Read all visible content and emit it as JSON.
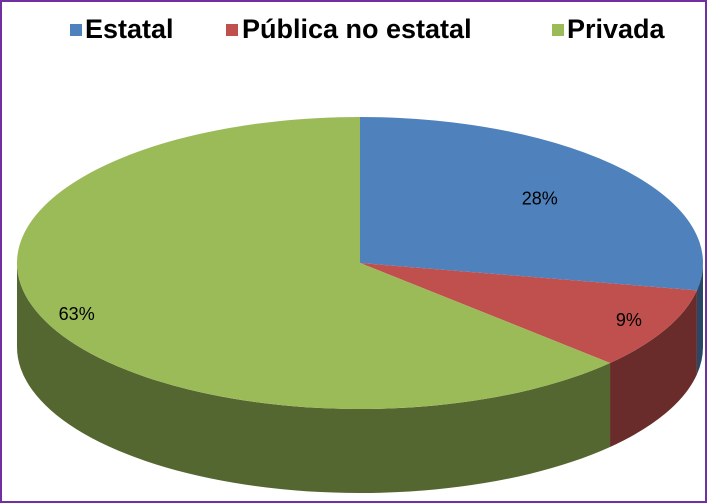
{
  "chart_data": {
    "type": "pie",
    "three_d": true,
    "categories": [
      "Estatal",
      "Pública no estatal",
      "Privada"
    ],
    "values": [
      28,
      9,
      63
    ],
    "value_labels": [
      "28%",
      "9%",
      "63%"
    ],
    "colors": [
      "#4f81bd",
      "#c0504d",
      "#9bbb59"
    ],
    "legend": "top"
  }
}
